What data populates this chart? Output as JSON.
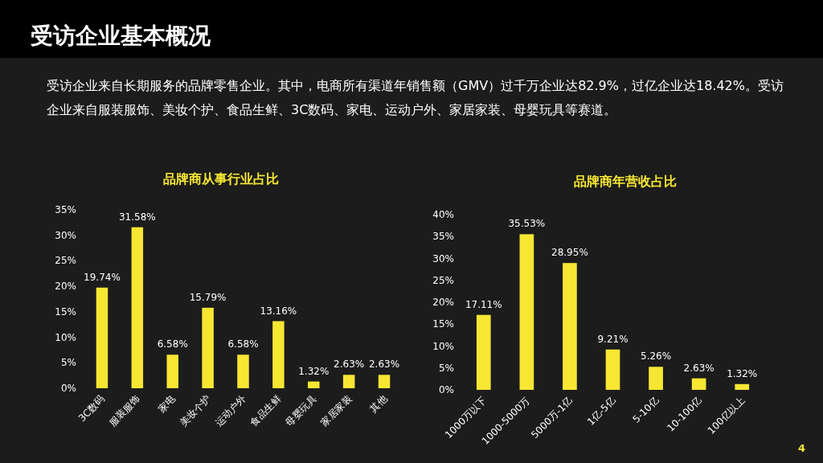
{
  "chart_data": [
    {
      "type": "bar",
      "title": "品牌商从事行业占比",
      "annotations": [
        "受访企业基本概况",
        "受访企业来自长期服务的品牌零售企业。其中，电商所有渠道年销售额（GMV）过千万企业达82.9%，过亿企业达18.42%。受访企业来自服装服饰、美妆个护、食品生鲜、3C数码、家电、运动户外、家居家装、母婴玩具等赛道。",
        "4"
      ],
      "categories": [
        "3C数码",
        "服装服饰",
        "家电",
        "美妆个护",
        "运动户外",
        "食品生鲜",
        "母婴玩具",
        "家居家装",
        "其他"
      ],
      "values": [
        19.74,
        31.58,
        6.58,
        15.79,
        6.58,
        13.16,
        1.32,
        2.63,
        2.63
      ],
      "value_labels": [
        "19.74%",
        "31.58%",
        "6.58%",
        "15.79%",
        "6.58%",
        "13.16%",
        "1.32%",
        "2.63%",
        "2.63%"
      ],
      "color": "#f7e733",
      "ylim": [
        0,
        35
      ],
      "yticks": [
        {
          "value": 0,
          "label": "0%"
        },
        {
          "value": 5,
          "label": "5%"
        },
        {
          "value": 10,
          "label": "10%"
        },
        {
          "value": 15,
          "label": "15%"
        },
        {
          "value": 20,
          "label": "20%"
        },
        {
          "value": 25,
          "label": "25%"
        },
        {
          "value": 30,
          "label": "30%"
        },
        {
          "value": 35,
          "label": "35%"
        }
      ],
      "grid": false
    },
    {
      "type": "bar",
      "title": "品牌商年营收占比",
      "categories": [
        "1000万以下",
        "1000-5000万",
        "5000万-1亿",
        "1亿-5亿",
        "5-10亿",
        "10-100亿",
        "100亿以上"
      ],
      "values": [
        17.11,
        35.53,
        28.95,
        9.21,
        5.26,
        2.63,
        1.32
      ],
      "value_labels": [
        "17.11%",
        "35.53%",
        "28.95%",
        "9.21%",
        "5.26%",
        "2.63%",
        "1.32%"
      ],
      "color": "#f7e733",
      "ylim": [
        0,
        40
      ],
      "yticks": [
        {
          "value": 0,
          "label": "0%"
        },
        {
          "value": 5,
          "label": "5%"
        },
        {
          "value": 10,
          "label": "10%"
        },
        {
          "value": 15,
          "label": "15%"
        },
        {
          "value": 20,
          "label": "20%"
        },
        {
          "value": 25,
          "label": "25%"
        },
        {
          "value": 30,
          "label": "30%"
        },
        {
          "value": 35,
          "label": "35%"
        },
        {
          "value": 40,
          "label": "40%"
        }
      ],
      "grid": false
    }
  ]
}
